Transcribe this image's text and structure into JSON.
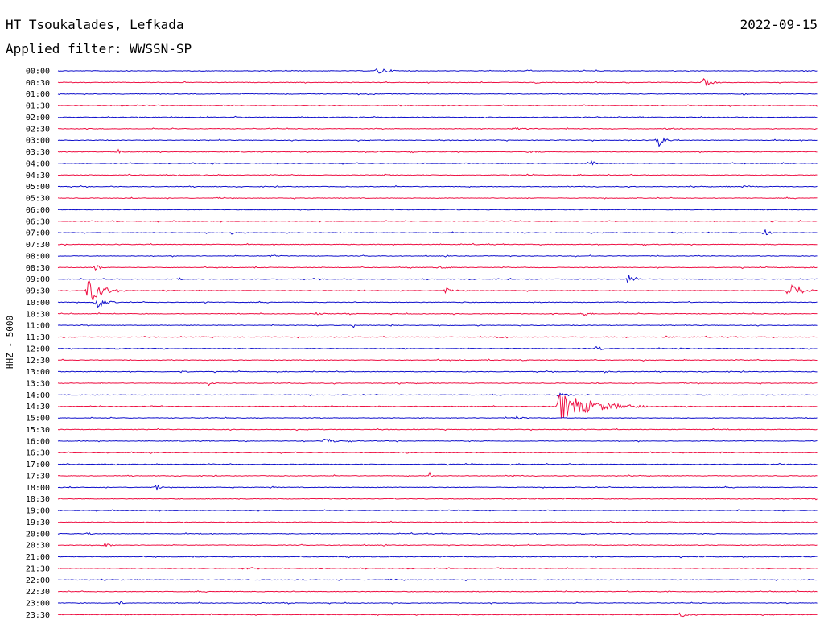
{
  "chart_data": {
    "type": "line",
    "title": "HT Tsoukalades, Lefkada",
    "date": "2022-09-15",
    "subtitle": "Applied filter: WWSSN-SP",
    "ylabel": "HHZ - 5000",
    "grid": false,
    "series_colors": [
      "#1111cc",
      "#ee1144"
    ],
    "rows": [
      {
        "label": "00:00",
        "events": [
          {
            "x": 0.42,
            "amp": 5,
            "dur": 0.04
          }
        ]
      },
      {
        "label": "00:30",
        "events": [
          {
            "x": 0.63,
            "amp": 2,
            "dur": 0.01
          },
          {
            "x": 0.85,
            "amp": 5,
            "dur": 0.03
          }
        ]
      },
      {
        "label": "01:00",
        "events": [
          {
            "x": 0.3,
            "amp": 1,
            "dur": 0.03
          },
          {
            "x": 0.9,
            "amp": 1.5,
            "dur": 0.04
          }
        ]
      },
      {
        "label": "01:30",
        "events": [
          {
            "x": 0.07,
            "amp": 1,
            "dur": 0.02
          },
          {
            "x": 0.13,
            "amp": 1,
            "dur": 0.02
          },
          {
            "x": 0.45,
            "amp": 1,
            "dur": 0.03
          }
        ]
      },
      {
        "label": "02:00",
        "events": [
          {
            "x": 0.56,
            "amp": 1.5,
            "dur": 0.02
          },
          {
            "x": 0.8,
            "amp": 1,
            "dur": 0.02
          }
        ]
      },
      {
        "label": "02:30",
        "events": [
          {
            "x": 0.6,
            "amp": 1.5,
            "dur": 0.08
          },
          {
            "x": 0.8,
            "amp": 1.5,
            "dur": 0.06
          }
        ]
      },
      {
        "label": "03:00",
        "events": [
          {
            "x": 0.79,
            "amp": 9,
            "dur": 0.02
          }
        ]
      },
      {
        "label": "03:30",
        "events": [
          {
            "x": 0.08,
            "amp": 4,
            "dur": 0.01
          },
          {
            "x": 0.42,
            "amp": 1.5,
            "dur": 0.02
          },
          {
            "x": 0.62,
            "amp": 1.5,
            "dur": 0.05
          }
        ]
      },
      {
        "label": "04:00",
        "events": [
          {
            "x": 0.7,
            "amp": 4,
            "dur": 0.02
          }
        ]
      },
      {
        "label": "04:30",
        "events": [
          {
            "x": 0.19,
            "amp": 1.5,
            "dur": 0.01
          },
          {
            "x": 0.43,
            "amp": 1.5,
            "dur": 0.02
          }
        ]
      },
      {
        "label": "05:00",
        "events": [
          {
            "x": 0.9,
            "amp": 1.5,
            "dur": 0.05
          }
        ]
      },
      {
        "label": "05:30",
        "events": [
          {
            "x": 0.62,
            "amp": 1,
            "dur": 0.02
          }
        ]
      },
      {
        "label": "06:00",
        "events": []
      },
      {
        "label": "06:30",
        "events": [
          {
            "x": 0.94,
            "amp": 1.5,
            "dur": 0.03
          }
        ]
      },
      {
        "label": "07:00",
        "events": [
          {
            "x": 0.23,
            "amp": 5,
            "dur": 0.01
          },
          {
            "x": 0.93,
            "amp": 4,
            "dur": 0.02
          }
        ]
      },
      {
        "label": "07:30",
        "events": []
      },
      {
        "label": "08:00",
        "events": [
          {
            "x": 0.28,
            "amp": 1.5,
            "dur": 0.04
          }
        ]
      },
      {
        "label": "08:30",
        "events": [
          {
            "x": 0.05,
            "amp": 4,
            "dur": 0.02
          },
          {
            "x": 0.5,
            "amp": 1.5,
            "dur": 0.05
          }
        ]
      },
      {
        "label": "09:00",
        "events": [
          {
            "x": 0.16,
            "amp": 2,
            "dur": 0.01
          },
          {
            "x": 0.75,
            "amp": 6,
            "dur": 0.03
          }
        ]
      },
      {
        "label": "09:30",
        "events": [
          {
            "x": 0.04,
            "amp": 16,
            "dur": 0.05
          },
          {
            "x": 0.51,
            "amp": 4,
            "dur": 0.02
          },
          {
            "x": 0.96,
            "amp": 13,
            "dur": 0.04
          }
        ]
      },
      {
        "label": "10:00",
        "events": [
          {
            "x": 0.05,
            "amp": 9,
            "dur": 0.03
          },
          {
            "x": 0.19,
            "amp": 2,
            "dur": 0.02
          },
          {
            "x": 0.53,
            "amp": 2.5,
            "dur": 0.01
          }
        ]
      },
      {
        "label": "10:30",
        "events": [
          {
            "x": 0.34,
            "amp": 1.5,
            "dur": 0.02
          },
          {
            "x": 0.69,
            "amp": 5,
            "dur": 0.02
          }
        ]
      },
      {
        "label": "11:00",
        "events": [
          {
            "x": 0.39,
            "amp": 4,
            "dur": 0.005
          },
          {
            "x": 0.44,
            "amp": 2,
            "dur": 0.005
          }
        ]
      },
      {
        "label": "11:30",
        "events": [
          {
            "x": 0.58,
            "amp": 2,
            "dur": 0.02
          },
          {
            "x": 0.8,
            "amp": 1.5,
            "dur": 0.03
          }
        ]
      },
      {
        "label": "12:00",
        "events": [
          {
            "x": 0.71,
            "amp": 4,
            "dur": 0.02
          }
        ]
      },
      {
        "label": "12:30",
        "events": [
          {
            "x": 0.61,
            "amp": 1.5,
            "dur": 0.01
          },
          {
            "x": 0.97,
            "amp": 1.5,
            "dur": 0.01
          }
        ]
      },
      {
        "label": "13:00",
        "events": [
          {
            "x": 0.16,
            "amp": 1.5,
            "dur": 0.04
          },
          {
            "x": 0.72,
            "amp": 1.5,
            "dur": 0.03
          }
        ]
      },
      {
        "label": "13:30",
        "events": [
          {
            "x": 0.2,
            "amp": 4,
            "dur": 0.01
          }
        ]
      },
      {
        "label": "14:00",
        "events": [
          {
            "x": 0.66,
            "amp": 3,
            "dur": 0.04
          }
        ]
      },
      {
        "label": "14:30",
        "events": [
          {
            "x": 0.12,
            "amp": 1.5,
            "dur": 0.02
          },
          {
            "x": 0.66,
            "amp": 18,
            "dur": 0.12
          }
        ]
      },
      {
        "label": "15:00",
        "events": [
          {
            "x": 0.6,
            "amp": 3,
            "dur": 0.03
          }
        ]
      },
      {
        "label": "15:30",
        "events": []
      },
      {
        "label": "16:00",
        "events": [
          {
            "x": 0.35,
            "amp": 5,
            "dur": 0.03
          }
        ]
      },
      {
        "label": "16:30",
        "events": [
          {
            "x": 0.45,
            "amp": 1.5,
            "dur": 0.04
          },
          {
            "x": 0.78,
            "amp": 1.5,
            "dur": 0.02
          }
        ]
      },
      {
        "label": "17:00",
        "events": []
      },
      {
        "label": "17:30",
        "events": [
          {
            "x": 0.49,
            "amp": 5,
            "dur": 0.005
          },
          {
            "x": 0.6,
            "amp": 1.5,
            "dur": 0.01
          }
        ]
      },
      {
        "label": "18:00",
        "events": [
          {
            "x": 0.13,
            "amp": 5,
            "dur": 0.01
          },
          {
            "x": 0.28,
            "amp": 1.5,
            "dur": 0.02
          }
        ]
      },
      {
        "label": "18:30",
        "events": []
      },
      {
        "label": "19:00",
        "events": []
      },
      {
        "label": "19:30",
        "events": []
      },
      {
        "label": "20:00",
        "events": [
          {
            "x": 0.04,
            "amp": 2,
            "dur": 0.02
          }
        ]
      },
      {
        "label": "20:30",
        "events": [
          {
            "x": 0.06,
            "amp": 4,
            "dur": 0.02
          }
        ]
      },
      {
        "label": "21:00",
        "events": [
          {
            "x": 0.7,
            "amp": 1.5,
            "dur": 0.02
          }
        ]
      },
      {
        "label": "21:30",
        "events": [
          {
            "x": 0.25,
            "amp": 1.5,
            "dur": 0.03
          },
          {
            "x": 0.34,
            "amp": 1.5,
            "dur": 0.02
          },
          {
            "x": 0.58,
            "amp": 1.5,
            "dur": 0.02
          }
        ]
      },
      {
        "label": "22:00",
        "events": []
      },
      {
        "label": "22:30",
        "events": [
          {
            "x": 0.8,
            "amp": 1.5,
            "dur": 0.02
          }
        ]
      },
      {
        "label": "23:00",
        "events": [
          {
            "x": 0.08,
            "amp": 2.5,
            "dur": 0.02
          }
        ]
      },
      {
        "label": "23:30",
        "events": [
          {
            "x": 0.82,
            "amp": 4,
            "dur": 0.02
          }
        ]
      }
    ]
  }
}
